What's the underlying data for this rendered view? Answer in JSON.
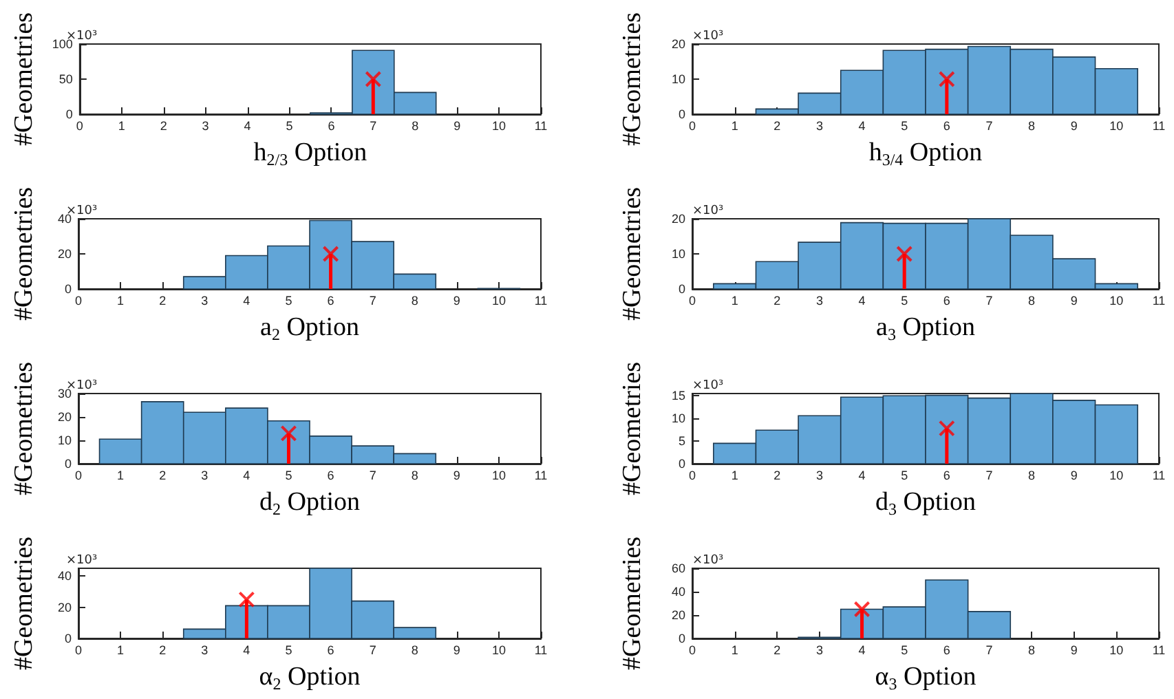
{
  "chart_data": [
    {
      "type": "histogram",
      "xlabel": "h$_{2/3}$ Option",
      "ylabel": "#Geometries",
      "annotations": [
        "×10³"
      ],
      "bins": [
        5.5,
        6.5,
        7.5,
        8.5
      ],
      "values": [
        2,
        91,
        31
      ],
      "color": "#61a5d7",
      "xlim": [
        0,
        11
      ],
      "xticks": [
        0,
        1,
        2,
        3,
        4,
        5,
        6,
        7,
        8,
        9,
        10,
        11
      ],
      "ylim": [
        0,
        100
      ],
      "yticks": [
        0,
        50,
        100
      ],
      "series": [
        {
          "type": "lollipop",
          "x": [
            7
          ],
          "values": [
            50
          ],
          "color": "#ff0000",
          "marker": "cross"
        }
      ]
    },
    {
      "type": "histogram",
      "xlabel": "h$_{3/4}$ Option",
      "ylabel": "#Geometries",
      "annotations": [
        "×10³"
      ],
      "bins": [
        1.5,
        2.5,
        3.5,
        4.5,
        5.5,
        6.5,
        7.5,
        8.5,
        9.5,
        10.5
      ],
      "values": [
        1.5,
        6,
        12.5,
        18.2,
        18.5,
        19.3,
        18.5,
        16.3,
        13
      ],
      "color": "#61a5d7",
      "xlim": [
        0,
        11
      ],
      "xticks": [
        0,
        1,
        2,
        3,
        4,
        5,
        6,
        7,
        8,
        9,
        10,
        11
      ],
      "ylim": [
        0,
        20
      ],
      "yticks": [
        0,
        10,
        20
      ],
      "series": [
        {
          "type": "lollipop",
          "x": [
            6
          ],
          "values": [
            10
          ],
          "color": "#ff0000",
          "marker": "cross"
        }
      ]
    },
    {
      "type": "histogram",
      "xlabel": "a$_{2}$ Option",
      "ylabel": "#Geometries",
      "annotations": [
        "×10³"
      ],
      "bins": [
        2.5,
        3.5,
        4.5,
        5.5,
        6.5,
        7.5,
        8.5,
        9.5,
        10.5
      ],
      "values": [
        7,
        19,
        24.5,
        39,
        27,
        8.5,
        null,
        0.3
      ],
      "color": "#61a5d7",
      "xlim": [
        0,
        11
      ],
      "xticks": [
        0,
        1,
        2,
        3,
        4,
        5,
        6,
        7,
        8,
        9,
        10,
        11
      ],
      "ylim": [
        0,
        40
      ],
      "yticks": [
        0,
        20,
        40
      ],
      "series": [
        {
          "type": "lollipop",
          "x": [
            6
          ],
          "values": [
            20
          ],
          "color": "#ff0000",
          "marker": "cross"
        }
      ]
    },
    {
      "type": "histogram",
      "xlabel": "a$_{3}$ Option",
      "ylabel": "#Geometries",
      "annotations": [
        "×10³"
      ],
      "bins": [
        0.5,
        1.5,
        2.5,
        3.5,
        4.5,
        5.5,
        6.5,
        7.5,
        8.5,
        9.5,
        10.5
      ],
      "values": [
        1.5,
        7.8,
        13.3,
        18.9,
        18.7,
        18.7,
        20,
        15.3,
        8.6,
        1.5
      ],
      "color": "#61a5d7",
      "xlim": [
        0,
        11
      ],
      "xticks": [
        0,
        1,
        2,
        3,
        4,
        5,
        6,
        7,
        8,
        9,
        10,
        11
      ],
      "ylim": [
        0,
        20
      ],
      "yticks": [
        0,
        10,
        20
      ],
      "series": [
        {
          "type": "lollipop",
          "x": [
            5
          ],
          "values": [
            10
          ],
          "color": "#ff0000",
          "marker": "cross"
        }
      ]
    },
    {
      "type": "histogram",
      "xlabel": "d$_{2}$ Option",
      "ylabel": "#Geometries",
      "annotations": [
        "×10³"
      ],
      "bins": [
        0.5,
        1.5,
        2.5,
        3.5,
        4.5,
        5.5,
        6.5,
        7.5,
        8.5
      ],
      "values": [
        10.5,
        26.5,
        22,
        23.8,
        18.3,
        11.8,
        7.6,
        4.3
      ],
      "color": "#61a5d7",
      "xlim": [
        0,
        11
      ],
      "xticks": [
        0,
        1,
        2,
        3,
        4,
        5,
        6,
        7,
        8,
        9,
        10,
        11
      ],
      "ylim": [
        0,
        30
      ],
      "yticks": [
        0,
        10,
        20,
        30
      ],
      "series": [
        {
          "type": "lollipop",
          "x": [
            5
          ],
          "values": [
            13
          ],
          "color": "#ff0000",
          "marker": "cross"
        }
      ]
    },
    {
      "type": "histogram",
      "xlabel": "d$_{3}$ Option",
      "ylabel": "#Geometries",
      "annotations": [
        "×10³"
      ],
      "bins": [
        0.5,
        1.5,
        2.5,
        3.5,
        4.5,
        5.5,
        6.5,
        7.5,
        8.5,
        9.5,
        10.5
      ],
      "values": [
        4.5,
        7.4,
        10.6,
        14.7,
        15,
        15.1,
        14.5,
        15.5,
        14,
        13
      ],
      "color": "#61a5d7",
      "xlim": [
        0,
        11
      ],
      "xticks": [
        0,
        1,
        2,
        3,
        4,
        5,
        6,
        7,
        8,
        9,
        10,
        11
      ],
      "ylim": [
        0,
        15.5
      ],
      "yticks": [
        0,
        5,
        10,
        15
      ],
      "series": [
        {
          "type": "lollipop",
          "x": [
            6
          ],
          "values": [
            7.8
          ],
          "color": "#ff0000",
          "marker": "cross"
        }
      ]
    },
    {
      "type": "histogram",
      "xlabel": "α$_{2}$ Option",
      "ylabel": "#Geometries",
      "annotations": [
        "×10³"
      ],
      "bins": [
        2.5,
        3.5,
        4.5,
        5.5,
        6.5,
        7.5,
        8.5
      ],
      "values": [
        6,
        21,
        21,
        45,
        24,
        7
      ],
      "color": "#61a5d7",
      "xlim": [
        0,
        11
      ],
      "xticks": [
        0,
        1,
        2,
        3,
        4,
        5,
        6,
        7,
        8,
        9,
        10,
        11
      ],
      "ylim": [
        0,
        45
      ],
      "yticks": [
        0,
        20,
        40
      ],
      "series": [
        {
          "type": "lollipop",
          "x": [
            4
          ],
          "values": [
            25
          ],
          "color": "#ff0000",
          "marker": "cross"
        }
      ]
    },
    {
      "type": "histogram",
      "xlabel": "α$_{3}$ Option",
      "ylabel": "#Geometries",
      "annotations": [
        "×10³"
      ],
      "bins": [
        2.5,
        3.5,
        4.5,
        5.5,
        6.5,
        7.5
      ],
      "values": [
        1,
        25,
        27,
        50,
        23
      ],
      "color": "#61a5d7",
      "xlim": [
        0,
        11
      ],
      "xticks": [
        0,
        1,
        2,
        3,
        4,
        5,
        6,
        7,
        8,
        9,
        10,
        11
      ],
      "ylim": [
        0,
        60
      ],
      "yticks": [
        0,
        20,
        40,
        60
      ],
      "series": [
        {
          "type": "lollipop",
          "x": [
            4
          ],
          "values": [
            25
          ],
          "color": "#ff0000",
          "marker": "cross"
        }
      ]
    }
  ]
}
